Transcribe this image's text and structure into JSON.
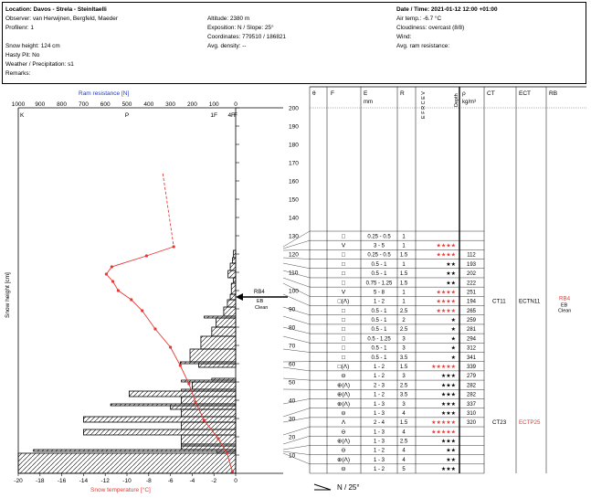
{
  "header": {
    "location": "Location: Davos - Strela - Steinltaelli",
    "observer": "Observer: van Herwijnen, Bergfeld, Maeder",
    "profile_nr": "Profilenr: 1",
    "snow_height": "Snow height: 124 cm",
    "hasty_pit": "Hasty Pit: No",
    "weather": "Weather / Precipitation: s1",
    "remarks": "Remarks:",
    "altitude": "Altitude: 2380 m",
    "exposition": "Exposition: N / Slope: 25°",
    "coordinates": "Coordinates: 779510 / 186821",
    "avg_density": "Avg. density: --",
    "datetime": "Date / Time: 2021-01-12 12:00 +01:00",
    "air_temp": "Air temp.: -6.7 °C",
    "cloudiness": "Cloudiness: overcast (8/8)",
    "wind": "Wind:",
    "avg_ram": "Avg. ram resistance:"
  },
  "chart_data": {
    "type": "line",
    "top_axis": {
      "title": "Ram resistance [N]",
      "ticks": [
        1000,
        900,
        800,
        700,
        600,
        500,
        400,
        300,
        200,
        100,
        0
      ],
      "hardness_labels": [
        "K",
        "P",
        "1F",
        "4F",
        "F"
      ]
    },
    "bottom_axis": {
      "title": "Snow temperature [°C]",
      "ticks": [
        -20,
        -18,
        -16,
        -14,
        -12,
        -10,
        -8,
        -6,
        -4,
        -2,
        0
      ],
      "range": [
        -20,
        0
      ]
    },
    "y_axis": {
      "title": "Snow height [cm]",
      "ticks": [
        10,
        20,
        30,
        40,
        50,
        60,
        70,
        80,
        90,
        100,
        110,
        120,
        130,
        140,
        150,
        160,
        170,
        180,
        190,
        200
      ],
      "range": [
        0,
        200
      ]
    },
    "temperature": {
      "color": "#e53935",
      "points": [
        [
          -6.7,
          164
        ],
        [
          -5.7,
          124
        ],
        [
          -8.2,
          119
        ],
        [
          -11.4,
          113
        ],
        [
          -11.9,
          109
        ],
        [
          -11.3,
          105
        ],
        [
          -10.8,
          100
        ],
        [
          -9.6,
          95
        ],
        [
          -8.6,
          89
        ],
        [
          -7.4,
          79
        ],
        [
          -6.0,
          69
        ],
        [
          -5.1,
          59
        ],
        [
          -4.3,
          49
        ],
        [
          -3.7,
          39
        ],
        [
          -2.9,
          29
        ],
        [
          -1.6,
          19
        ],
        [
          -0.8,
          11
        ],
        [
          -0.3,
          1
        ]
      ],
      "dashed_to_height": 124
    },
    "ram_profile": [
      [
        0,
        11,
        1000
      ],
      [
        11,
        12,
        85
      ],
      [
        12,
        13,
        930
      ],
      [
        13,
        15,
        250
      ],
      [
        15,
        16,
        250
      ],
      [
        16,
        21,
        250
      ],
      [
        21,
        24,
        700
      ],
      [
        24,
        28,
        250
      ],
      [
        28,
        31,
        700
      ],
      [
        31,
        35,
        250
      ],
      [
        35,
        37,
        300
      ],
      [
        37,
        38,
        575
      ],
      [
        38,
        42,
        250
      ],
      [
        42,
        45,
        490
      ],
      [
        45,
        46,
        250
      ],
      [
        46,
        50,
        200
      ],
      [
        50,
        51,
        250
      ],
      [
        51,
        52,
        110
      ],
      [
        52,
        58,
        0
      ],
      [
        58,
        60,
        170
      ],
      [
        60,
        61,
        255
      ],
      [
        61,
        68,
        210
      ],
      [
        68,
        75,
        160
      ],
      [
        75,
        80,
        110
      ],
      [
        80,
        85,
        90
      ],
      [
        85,
        86,
        145
      ],
      [
        86,
        91,
        55
      ],
      [
        91,
        95,
        38
      ],
      [
        95,
        98,
        25
      ],
      [
        98,
        104,
        20
      ],
      [
        104,
        107,
        10
      ],
      [
        107,
        111,
        35
      ],
      [
        111,
        115,
        25
      ],
      [
        115,
        118,
        15
      ],
      [
        118,
        122,
        10
      ],
      [
        122,
        124,
        0
      ]
    ]
  },
  "stability_marker": {
    "label": "RB4",
    "line1": "EB",
    "line2": "Clean",
    "height": 97
  },
  "table": {
    "headers": {
      "theta": "θ",
      "f": "F",
      "e": "E",
      "e_unit": "mm",
      "r": "R",
      "rho": "ρ",
      "rho_unit": "kg/m³",
      "ct": "CT",
      "ect": "ECT",
      "rb": "RB",
      "hardness_cols": "E F R C E V",
      "depth": "Depth"
    },
    "rows": [
      {
        "f": "□",
        "e": "0.25 - 0.5",
        "r": "1",
        "stars": "",
        "red": false,
        "rho": ""
      },
      {
        "f": "V",
        "e": "3 - 5",
        "r": "1",
        "stars": "★★★★",
        "red": true,
        "rho": ""
      },
      {
        "f": "□",
        "e": "0.25 - 0.5",
        "r": "1.5",
        "stars": "★★★★",
        "red": true,
        "rho": "112"
      },
      {
        "f": "□",
        "e": "0.5 - 1",
        "r": "1",
        "stars": "★★",
        "red": false,
        "rho": "193"
      },
      {
        "f": "□",
        "e": "0.5 - 1",
        "r": "1.5",
        "stars": "★★",
        "red": false,
        "rho": "202"
      },
      {
        "f": "□",
        "e": "0.75 - 1.25",
        "r": "1.5",
        "stars": "★★",
        "red": false,
        "rho": "222"
      },
      {
        "f": "V",
        "e": "5 - 8",
        "r": "1",
        "stars": "★★★★",
        "red": true,
        "rho": "251"
      },
      {
        "f": "□(Λ)",
        "e": "1 - 2",
        "r": "1",
        "stars": "★★★★",
        "red": true,
        "rho": "194"
      },
      {
        "f": "□",
        "e": "0.5 - 1",
        "r": "2.5",
        "stars": "★★★★",
        "red": true,
        "rho": "265"
      },
      {
        "f": "□",
        "e": "0.5 - 1",
        "r": "2",
        "stars": "★",
        "red": false,
        "rho": "259"
      },
      {
        "f": "□",
        "e": "0.5 - 1",
        "r": "2.5",
        "stars": "★",
        "red": false,
        "rho": "281"
      },
      {
        "f": "□",
        "e": "0.5 - 1.25",
        "r": "3",
        "stars": "★",
        "red": false,
        "rho": "294"
      },
      {
        "f": "□",
        "e": "0.5 - 1",
        "r": "3",
        "stars": "★",
        "red": false,
        "rho": "312"
      },
      {
        "f": "□",
        "e": "0.5 - 1",
        "r": "3.5",
        "stars": "★",
        "red": false,
        "rho": "341"
      },
      {
        "f": "□(Λ)",
        "e": "1 - 2",
        "r": "1.5",
        "stars": "★★★★★",
        "red": true,
        "rho": "339"
      },
      {
        "f": "⊖",
        "e": "1 - 2",
        "r": "3",
        "stars": "★★★",
        "red": false,
        "rho": "279"
      },
      {
        "f": "⊕(Λ)",
        "e": "2 - 3",
        "r": "2.5",
        "stars": "★★★",
        "red": false,
        "rho": "282"
      },
      {
        "f": "⊕(Λ)",
        "e": "1 - 2",
        "r": "3.5",
        "stars": "★★★",
        "red": false,
        "rho": "282"
      },
      {
        "f": "⊕(Λ)",
        "e": "1 - 3",
        "r": "3",
        "stars": "★★★",
        "red": false,
        "rho": "337"
      },
      {
        "f": "⊖",
        "e": "1 - 3",
        "r": "4",
        "stars": "★★★",
        "red": false,
        "rho": "310"
      },
      {
        "f": "Λ",
        "e": "2 - 4",
        "r": "1.5",
        "stars": "★★★★★",
        "red": true,
        "rho": "320"
      },
      {
        "f": "⊖",
        "e": "1 - 3",
        "r": "4",
        "stars": "★★★★★",
        "red": true,
        "rho": ""
      },
      {
        "f": "⊕(Λ)",
        "e": "1 - 3",
        "r": "2.5",
        "stars": "★★★",
        "red": false,
        "rho": ""
      },
      {
        "f": "⊖",
        "e": "1 - 2",
        "r": "4",
        "stars": "★★",
        "red": false,
        "rho": ""
      },
      {
        "f": "⊕(Λ)",
        "e": "1 - 3",
        "r": "4",
        "stars": "★★",
        "red": false,
        "rho": ""
      },
      {
        "f": "⊖",
        "e": "1 - 2",
        "r": "5",
        "stars": "★★★",
        "red": false,
        "rho": ""
      }
    ],
    "ct_results": [
      {
        "row": 7,
        "ct": "CT11",
        "ect": "ECTN11",
        "ect_red": false,
        "rb": "RB4",
        "rb_sub1": "EB",
        "rb_sub2": "Clean"
      },
      {
        "row": 20,
        "ct": "CT23",
        "ect": "ECTP25",
        "ect_red": true,
        "rb": "",
        "rb_sub1": "",
        "rb_sub2": ""
      }
    ]
  },
  "slope_label": "N / 25°",
  "colors": {
    "red": "#e53935",
    "blue": "#1e3cc8",
    "black": "#000000"
  }
}
